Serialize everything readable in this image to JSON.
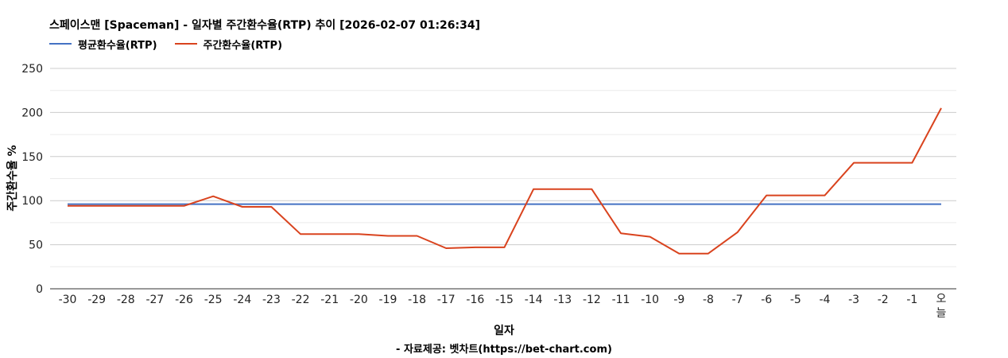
{
  "chart_data": {
    "type": "line",
    "title": "스페이스맨 [Spaceman] - 일자별 주간환수율(RTP) 추이 [2026-02-07 01:26:34]",
    "xlabel": "일자",
    "ylabel": "주간환수율 %",
    "source": "- 자료제공: 벳차트(https://bet-chart.com)",
    "categories": [
      "-30",
      "-29",
      "-28",
      "-27",
      "-26",
      "-25",
      "-24",
      "-23",
      "-22",
      "-21",
      "-20",
      "-19",
      "-18",
      "-17",
      "-16",
      "-15",
      "-14",
      "-13",
      "-12",
      "-11",
      "-10",
      "-9",
      "-8",
      "-7",
      "-6",
      "-5",
      "-4",
      "-3",
      "-2",
      "-1",
      "오늘"
    ],
    "ylim": [
      0,
      250
    ],
    "yticks": [
      0,
      50,
      100,
      150,
      200,
      250
    ],
    "grid": true,
    "legend_position": "top-left",
    "series": [
      {
        "name": "평균환수율(RTP)",
        "color": "#4472c4",
        "values": [
          96,
          96,
          96,
          96,
          96,
          96,
          96,
          96,
          96,
          96,
          96,
          96,
          96,
          96,
          96,
          96,
          96,
          96,
          96,
          96,
          96,
          96,
          96,
          96,
          96,
          96,
          96,
          96,
          96,
          96,
          96
        ]
      },
      {
        "name": "주간환수율(RTP)",
        "color": "#d9431e",
        "values": [
          94,
          94,
          94,
          94,
          94,
          105,
          93,
          93,
          62,
          62,
          62,
          60,
          60,
          46,
          47,
          47,
          113,
          113,
          113,
          63,
          59,
          40,
          40,
          64,
          106,
          106,
          106,
          143,
          143,
          143,
          205
        ]
      }
    ]
  }
}
